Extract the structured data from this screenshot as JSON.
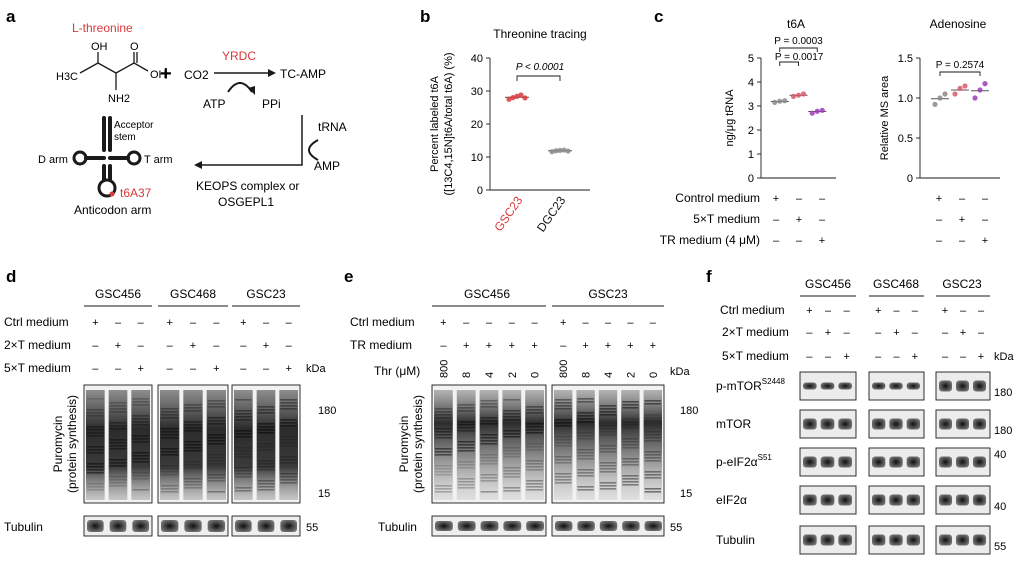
{
  "panel_letters": [
    "a",
    "b",
    "c",
    "d",
    "e",
    "f"
  ],
  "a": {
    "threonine_label": "L-threonine",
    "oh": "OH",
    "oh2": "OH",
    "o": "O",
    "ch3": "H3C",
    "nh2": "NH2",
    "plus": "+",
    "co2": "CO2",
    "enzyme": "YRDC",
    "product": "TC-AMP",
    "atp": "ATP",
    "ppi": "PPi",
    "trna": "tRNA",
    "amp": "AMP",
    "keops_line1": "KEOPS complex or",
    "keops_line2": "OSGEPL1",
    "acceptor_line1": "Acceptor",
    "acceptor_line2": "stem",
    "d_arm": "D arm",
    "t_arm": "T arm",
    "t6a37": "t6A37",
    "anticodon": "Anticodon arm"
  },
  "colors": {
    "red": "#d83a3a",
    "gray": "#8a8a8a",
    "purple": "#9b3db8",
    "pink": "#d85a6a"
  },
  "chart_data": [
    {
      "type": "scatter",
      "panel": "b",
      "title": "Threonine tracing",
      "ylabel": "Percent labeled t6A ([13C4,15N]t6A/total t6A) (%)",
      "ylim": [
        0,
        40
      ],
      "yticks": [
        0,
        10,
        20,
        30,
        40
      ],
      "categories": [
        "GSC23",
        "DGC23"
      ],
      "category_colors": [
        "#d83a3a",
        "#1a1a1a"
      ],
      "series": [
        {
          "category": "GSC23",
          "values": [
            27.5,
            28.0,
            28.4,
            28.8,
            27.9
          ],
          "mean": 28.1
        },
        {
          "category": "DGC23",
          "values": [
            11.6,
            11.9,
            12.0,
            12.1,
            11.8
          ],
          "mean": 11.9
        }
      ],
      "annotation": "P < 0.0001"
    },
    {
      "type": "scatter",
      "panel": "c-left",
      "title": "t6A",
      "ylabel": "ng/μg tRNA",
      "ylim": [
        0,
        5
      ],
      "yticks": [
        0,
        1,
        2,
        3,
        4,
        5
      ],
      "groups": [
        {
          "values": [
            3.15,
            3.2,
            3.22
          ],
          "mean": 3.19
        },
        {
          "values": [
            3.4,
            3.45,
            3.5
          ],
          "mean": 3.45
        },
        {
          "values": [
            2.7,
            2.78,
            2.82
          ],
          "mean": 2.77
        }
      ],
      "annotations": [
        "P = 0.0003",
        "P = 0.0017"
      ]
    },
    {
      "type": "scatter",
      "panel": "c-right",
      "title": "Adenosine",
      "ylabel": "Relative MS area",
      "ylim": [
        0,
        1.5
      ],
      "yticks": [
        0,
        0.5,
        1.0,
        1.5
      ],
      "groups": [
        {
          "values": [
            0.92,
            1.0,
            1.05
          ],
          "mean": 0.99
        },
        {
          "values": [
            1.05,
            1.12,
            1.15
          ],
          "mean": 1.1
        },
        {
          "values": [
            1.0,
            1.1,
            1.18
          ],
          "mean": 1.09
        }
      ],
      "annotations": [
        "P = 0.2574"
      ]
    }
  ],
  "c_table": {
    "rows": [
      {
        "label": "Control medium",
        "cells": [
          "+",
          "–",
          "–"
        ]
      },
      {
        "label": "5×T medium",
        "cells": [
          "–",
          "+",
          "–"
        ]
      },
      {
        "label": "TR medium (4 μM)",
        "cells": [
          "–",
          "–",
          "+"
        ]
      }
    ]
  },
  "d": {
    "groups": [
      "GSC456",
      "GSC468",
      "GSC23"
    ],
    "rows": [
      {
        "label": "Ctrl medium",
        "cells": [
          "+",
          "–",
          "–",
          "+",
          "–",
          "–",
          "+",
          "–",
          "–"
        ]
      },
      {
        "label": "2×T medium",
        "cells": [
          "–",
          "+",
          "–",
          "–",
          "+",
          "–",
          "–",
          "+",
          "–"
        ]
      },
      {
        "label": "5×T medium",
        "cells": [
          "–",
          "–",
          "+",
          "–",
          "–",
          "+",
          "–",
          "–",
          "+"
        ]
      }
    ],
    "kda": "kDa",
    "blot_label_1": "Puromycin",
    "blot_label_2": "(protein synthesis)",
    "markers": [
      "180",
      "15"
    ],
    "tubulin": "Tubulin",
    "tubulin_marker": "55"
  },
  "e": {
    "groups": [
      "GSC456",
      "GSC23"
    ],
    "rows": [
      {
        "label": "Ctrl medium",
        "cells": [
          "+",
          "–",
          "–",
          "–",
          "–",
          "+",
          "–",
          "–",
          "–",
          "–"
        ]
      },
      {
        "label": "TR medium",
        "cells": [
          "–",
          "+",
          "+",
          "+",
          "+",
          "–",
          "+",
          "+",
          "+",
          "+"
        ]
      }
    ],
    "thr_label": "Thr (μM)",
    "thr_values": [
      "800",
      "8",
      "4",
      "2",
      "0",
      "800",
      "8",
      "4",
      "2",
      "0"
    ],
    "kda": "kDa",
    "blot_label_1": "Puromycin",
    "blot_label_2": "(protein synthesis)",
    "markers": [
      "180",
      "15"
    ],
    "tubulin": "Tubulin",
    "tubulin_marker": "55"
  },
  "f": {
    "groups": [
      "GSC456",
      "GSC468",
      "GSC23"
    ],
    "rows": [
      {
        "label": "Ctrl medium",
        "cells": [
          "+",
          "–",
          "–",
          "+",
          "–",
          "–",
          "+",
          "–",
          "–"
        ]
      },
      {
        "label": "2×T medium",
        "cells": [
          "–",
          "+",
          "–",
          "–",
          "+",
          "–",
          "–",
          "+",
          "–"
        ]
      },
      {
        "label": "5×T medium",
        "cells": [
          "–",
          "–",
          "+",
          "–",
          "–",
          "+",
          "–",
          "–",
          "+"
        ]
      }
    ],
    "kda": "kDa",
    "blots": [
      {
        "label": "p-mTOR",
        "sup": "S2448",
        "marker": "180"
      },
      {
        "label": "mTOR",
        "sup": "",
        "marker": "180"
      },
      {
        "label": "p-eIF2α",
        "sup": "S51",
        "marker": "40"
      },
      {
        "label": "eIF2α",
        "sup": "",
        "marker": "40"
      },
      {
        "label": "Tubulin",
        "sup": "",
        "marker": "55"
      }
    ]
  }
}
